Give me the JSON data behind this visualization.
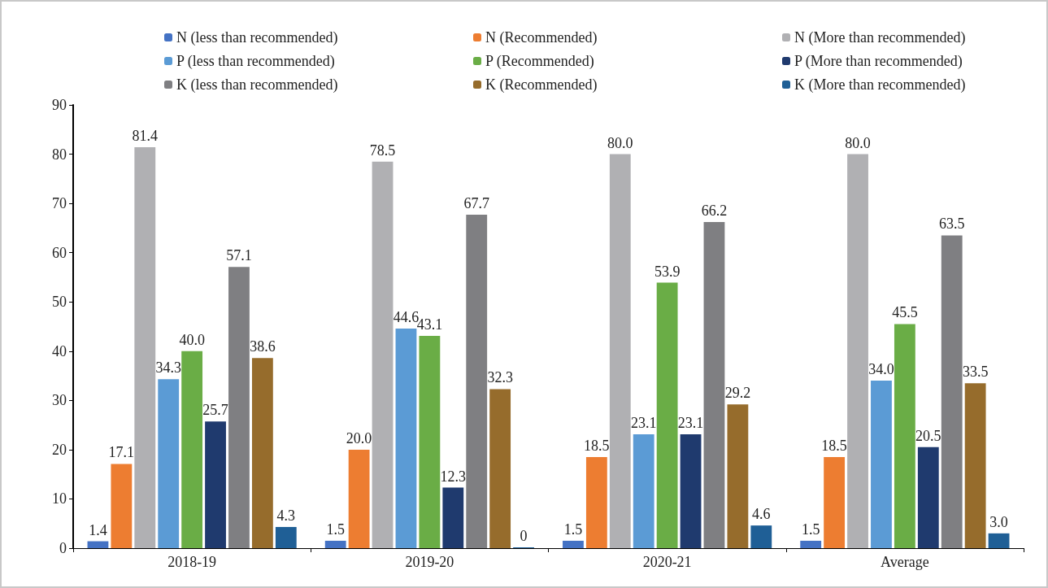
{
  "chart_data": {
    "type": "bar",
    "categories": [
      "2018-19",
      "2019-20",
      "2020-21",
      "Average"
    ],
    "series": [
      {
        "name": "N (less than recommended)",
        "color": "#4472c4",
        "values": [
          1.4,
          1.5,
          1.5,
          1.5
        ],
        "value_labels": [
          "1.4",
          "1.5",
          "1.5",
          "1.5"
        ]
      },
      {
        "name": "N (Recommended)",
        "color": "#ed7d31",
        "values": [
          17.1,
          20.0,
          18.5,
          18.5
        ],
        "value_labels": [
          "17.1",
          "20.0",
          "18.5",
          "18.5"
        ]
      },
      {
        "name": "N (More than recommended)",
        "color": "#b0b0b3",
        "values": [
          81.4,
          78.5,
          80.0,
          80.0
        ],
        "value_labels": [
          "81.4",
          "78.5",
          "80.0",
          "80.0"
        ]
      },
      {
        "name": "P (less than recommended)",
        "color": "#5b9bd5",
        "values": [
          34.3,
          44.6,
          23.1,
          34.0
        ],
        "value_labels": [
          "34.3",
          "44.6",
          "23.1",
          "34.0"
        ]
      },
      {
        "name": "P (Recommended)",
        "color": "#6aad46",
        "values": [
          40.0,
          43.1,
          53.9,
          45.5
        ],
        "value_labels": [
          "40.0",
          "43.1",
          "53.9",
          "45.5"
        ]
      },
      {
        "name": "P (More than recommended)",
        "color": "#1f3a6e",
        "values": [
          25.7,
          12.3,
          23.1,
          20.5
        ],
        "value_labels": [
          "25.7",
          "12.3",
          "23.1",
          "20.5"
        ]
      },
      {
        "name": "K (less than recommended)",
        "color": "#7f7f82",
        "values": [
          57.1,
          67.7,
          66.2,
          63.5
        ],
        "value_labels": [
          "57.1",
          "67.7",
          "66.2",
          "63.5"
        ]
      },
      {
        "name": "K (Recommended)",
        "color": "#966c2c",
        "values": [
          38.6,
          32.3,
          29.2,
          33.5
        ],
        "value_labels": [
          "38.6",
          "32.3",
          "29.2",
          "33.5"
        ]
      },
      {
        "name": "K (More than recommended)",
        "color": "#1f5f96",
        "values": [
          4.3,
          0,
          4.6,
          3.0
        ],
        "value_labels": [
          "4.3",
          "0",
          "4.6",
          "3.0"
        ]
      }
    ],
    "ylim": [
      0,
      90
    ],
    "yticks": [
      0,
      10,
      20,
      30,
      40,
      50,
      60,
      70,
      80,
      90
    ],
    "grid": false,
    "legend": "top"
  }
}
